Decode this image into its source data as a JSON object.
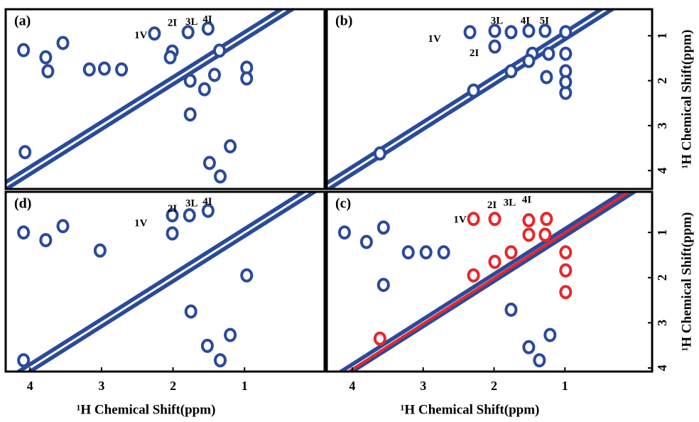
{
  "chart_data": [
    {
      "type": "scatter",
      "panel_label": "(a)",
      "xlim": [
        4.34,
        -0.12
      ],
      "ylim": [
        4.41,
        0.41
      ],
      "series": [
        {
          "color": "#2a4a9a",
          "x": [
            4.09,
            3.54,
            3.78,
            3.75,
            3.17,
            2.96,
            2.72,
            2.26,
            2.01,
            1.79,
            1.51,
            1.35,
            0.97,
            1.56,
            1.76,
            1.2,
            0.97,
            4.07,
            1.49,
            1.34,
            2.04,
            1.76,
            1.42
          ],
          "values": [
            1.32,
            1.16,
            1.48,
            1.79,
            1.75,
            1.73,
            1.75,
            0.95,
            1.35,
            0.92,
            0.84,
            1.33,
            1.71,
            2.19,
            2.75,
            3.46,
            1.95,
            3.59,
            3.83,
            4.13,
            1.48,
            2.0,
            1.87
          ]
        }
      ],
      "annotations": [
        {
          "text": "1V",
          "x": 2.45,
          "y": 1.0
        },
        {
          "text": "2I",
          "x": 2.01,
          "y": 0.73
        },
        {
          "text": "3L",
          "x": 1.74,
          "y": 0.7
        },
        {
          "text": "4I",
          "x": 1.52,
          "y": 0.65
        }
      ]
    },
    {
      "type": "scatter",
      "panel_label": "(b)",
      "xlim": [
        4.36,
        -0.23
      ],
      "ylim": [
        4.41,
        0.41
      ],
      "yticks": [
        1,
        2,
        3,
        4
      ],
      "ylabel": "¹H Chemical Shift(ppm)",
      "series": [
        {
          "color": "#2a4a9a",
          "x": [
            2.34,
            1.99,
            1.99,
            1.76,
            1.51,
            1.28,
            0.99,
            2.29,
            1.46,
            1.23,
            0.99,
            0.99,
            0.99,
            0.99,
            1.76,
            1.51,
            3.61,
            1.26
          ],
          "values": [
            0.92,
            0.89,
            1.24,
            0.92,
            0.89,
            0.89,
            0.92,
            2.22,
            1.4,
            1.4,
            1.4,
            1.79,
            2.27,
            2.03,
            1.79,
            1.56,
            3.62,
            1.92
          ]
        }
      ],
      "annotations": [
        {
          "text": "1V",
          "x": 2.84,
          "y": 1.08
        },
        {
          "text": "2I",
          "x": 2.28,
          "y": 1.4
        },
        {
          "text": "3L",
          "x": 1.96,
          "y": 0.68
        },
        {
          "text": "4I",
          "x": 1.56,
          "y": 0.68
        },
        {
          "text": "5I",
          "x": 1.29,
          "y": 0.68
        }
      ]
    },
    {
      "type": "scatter",
      "panel_label": "(d)",
      "xlim": [
        4.34,
        -0.12
      ],
      "ylim": [
        4.08,
        0.1
      ],
      "xticks": [
        4,
        3,
        2,
        1
      ],
      "xlabel": "¹H Chemical Shift(ppm)",
      "series": [
        {
          "color": "#2a4a9a",
          "x": [
            4.09,
            3.54,
            3.78,
            3.02,
            2.01,
            2.01,
            1.77,
            1.51,
            0.97,
            1.75,
            1.2,
            1.34,
            1.52,
            4.09
          ],
          "values": [
            1.0,
            0.86,
            1.17,
            1.4,
            0.62,
            1.02,
            0.62,
            0.52,
            1.95,
            2.75,
            3.27,
            3.83,
            3.51,
            3.83
          ]
        }
      ],
      "annotations": [
        {
          "text": "1V",
          "x": 2.45,
          "y": 0.81
        },
        {
          "text": "2I",
          "x": 2.01,
          "y": 0.49
        },
        {
          "text": "3L",
          "x": 1.74,
          "y": 0.37
        },
        {
          "text": "4I",
          "x": 1.52,
          "y": 0.33
        }
      ]
    },
    {
      "type": "scatter",
      "panel_label": "(c)",
      "xlim": [
        4.36,
        -0.23
      ],
      "ylim": [
        4.08,
        0.1
      ],
      "xticks": [
        4,
        3,
        2,
        1
      ],
      "yticks": [
        1,
        2,
        3,
        4
      ],
      "xlabel": "¹H Chemical Shift(ppm)",
      "ylabel": "¹H Chemical Shift(ppm)",
      "series": [
        {
          "color": "#2a4a9a",
          "x": [
            4.11,
            3.56,
            3.8,
            3.21,
            2.96,
            2.71,
            1.76,
            1.21,
            1.36,
            1.51,
            3.56
          ],
          "values": [
            1.0,
            0.89,
            1.21,
            1.44,
            1.44,
            1.44,
            2.71,
            3.27,
            3.83,
            3.54,
            2.16
          ]
        },
        {
          "color": "#e8262b",
          "x": [
            2.29,
            1.99,
            2.29,
            1.99,
            1.76,
            1.51,
            1.51,
            1.28,
            0.99,
            0.99,
            0.99,
            3.61,
            1.26
          ],
          "values": [
            0.7,
            0.7,
            1.95,
            1.65,
            1.44,
            1.05,
            0.73,
            1.05,
            1.44,
            1.84,
            2.32,
            3.35,
            0.7
          ]
        }
      ],
      "annotations": [
        {
          "text": "1V",
          "x": 2.48,
          "y": 0.73
        },
        {
          "text": "2I",
          "x": 2.03,
          "y": 0.41
        },
        {
          "text": "3L",
          "x": 1.78,
          "y": 0.35
        },
        {
          "text": "4I",
          "x": 1.54,
          "y": 0.29
        }
      ]
    }
  ]
}
